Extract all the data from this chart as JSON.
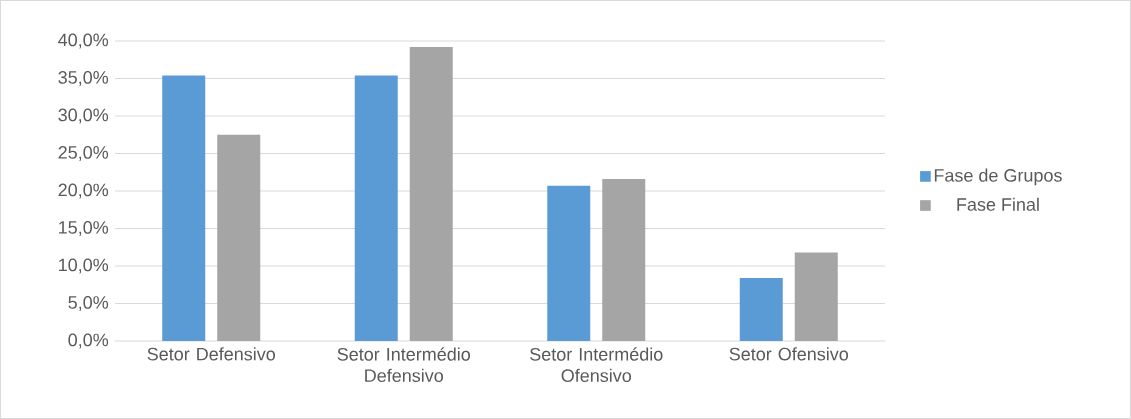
{
  "chart_data": {
    "type": "bar",
    "categories": [
      "Setor Defensivo",
      "Setor Intermédio Defensivo",
      "Setor Intermédio Ofensivo",
      "Setor Ofensivo"
    ],
    "series": [
      {
        "name": "Fase de Grupos",
        "color": "#5b9bd5",
        "values": [
          35.4,
          35.4,
          20.7,
          8.4
        ]
      },
      {
        "name": "Fase Final",
        "color": "#a5a5a5",
        "values": [
          27.5,
          39.2,
          21.6,
          11.8
        ]
      }
    ],
    "ylim": [
      0,
      40
    ],
    "yticks": [
      {
        "value": 0,
        "label": "0,0%"
      },
      {
        "value": 5,
        "label": "5,0%"
      },
      {
        "value": 10,
        "label": "10,0%"
      },
      {
        "value": 15,
        "label": "15,0%"
      },
      {
        "value": 20,
        "label": "20,0%"
      },
      {
        "value": 25,
        "label": "25,0%"
      },
      {
        "value": 30,
        "label": "30,0%"
      },
      {
        "value": 35,
        "label": "35,0%"
      },
      {
        "value": 40,
        "label": "40,0%"
      }
    ],
    "grid": "y",
    "legend": "right"
  }
}
